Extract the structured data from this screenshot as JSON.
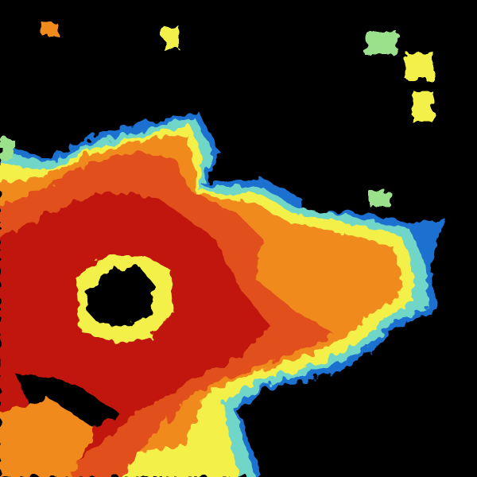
{
  "image": {
    "kind": "radar reflectivity scan",
    "background_color": "#000000",
    "palette": {
      "blue": "#1e6fd0",
      "cyan": "#6fd6c8",
      "green": "#9be08a",
      "yellow": "#f2f04a",
      "orange": "#f08a1e",
      "red_orange": "#e0501a",
      "red": "#c81e0a",
      "dark_red": "#b00e00"
    }
  }
}
